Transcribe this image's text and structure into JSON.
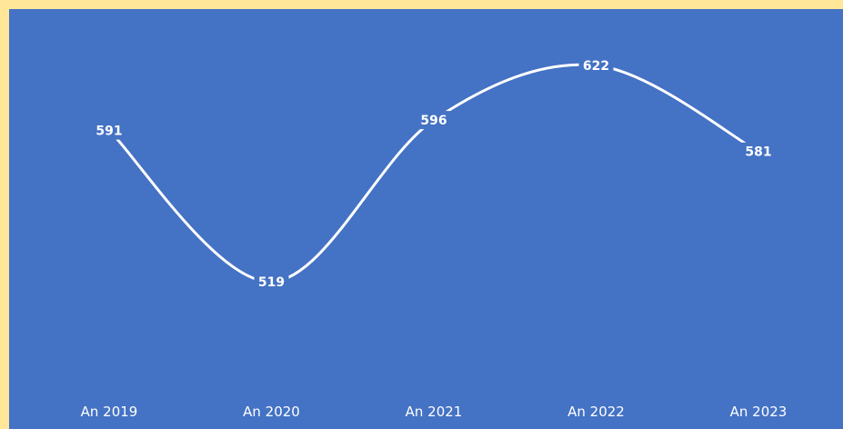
{
  "chart_data": {
    "type": "line",
    "categories": [
      "An 2019",
      "An 2020",
      "An 2021",
      "An 2022",
      "An 2023"
    ],
    "series": [
      {
        "values": [
          591,
          519,
          596,
          622,
          581
        ]
      }
    ],
    "title": "",
    "xlabel": "",
    "ylabel": "",
    "ylim": [
      500,
      630
    ],
    "smooth": true,
    "drop_lines": true,
    "data_labels": true,
    "grid": false,
    "legend": "none",
    "colors": {
      "background": "#4472C4",
      "border": "#FFE699",
      "line": "#FFFFFF",
      "text": "#FFFFFF"
    }
  }
}
